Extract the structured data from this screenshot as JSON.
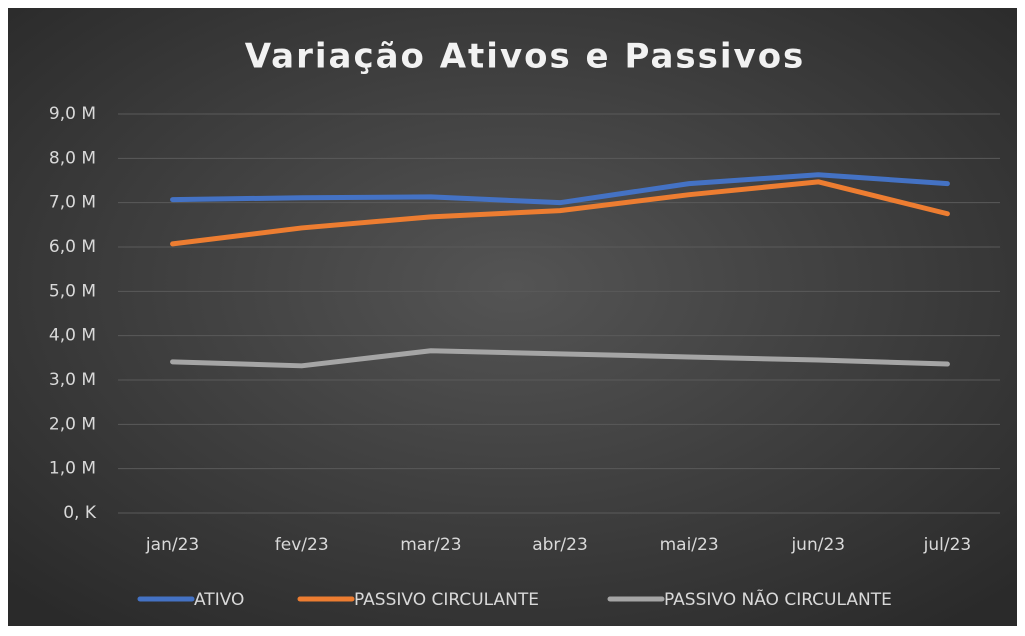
{
  "chart_data": {
    "type": "line",
    "title": "Variação Ativos e Passivos",
    "categories": [
      "jan/23",
      "fev/23",
      "mar/23",
      "abr/23",
      "mai/23",
      "jun/23",
      "jul/23"
    ],
    "series": [
      {
        "name": "ATIVO",
        "color": "#4472c4",
        "values": [
          7070000,
          7110000,
          7130000,
          7000000,
          7430000,
          7630000,
          7430000
        ]
      },
      {
        "name": "PASSIVO CIRCULANTE",
        "color": "#ed7d31",
        "values": [
          6070000,
          6430000,
          6680000,
          6820000,
          7180000,
          7470000,
          6750000
        ]
      },
      {
        "name": "PASSIVO NÃO CIRCULANTE",
        "color": "#a5a5a5",
        "values": [
          3410000,
          3320000,
          3660000,
          3590000,
          3520000,
          3450000,
          3360000
        ]
      }
    ],
    "ylim": [
      0,
      9000000
    ],
    "yticks": [
      {
        "value": 0,
        "label": "0, K"
      },
      {
        "value": 1000000,
        "label": "1,0 M"
      },
      {
        "value": 2000000,
        "label": "2,0 M"
      },
      {
        "value": 3000000,
        "label": "3,0 M"
      },
      {
        "value": 4000000,
        "label": "4,0 M"
      },
      {
        "value": 5000000,
        "label": "5,0 M"
      },
      {
        "value": 6000000,
        "label": "6,0 M"
      },
      {
        "value": 7000000,
        "label": "7,0 M"
      },
      {
        "value": 8000000,
        "label": "8,0 M"
      },
      {
        "value": 9000000,
        "label": "9,0 M"
      }
    ],
    "grid": true,
    "legend": "bottom"
  }
}
